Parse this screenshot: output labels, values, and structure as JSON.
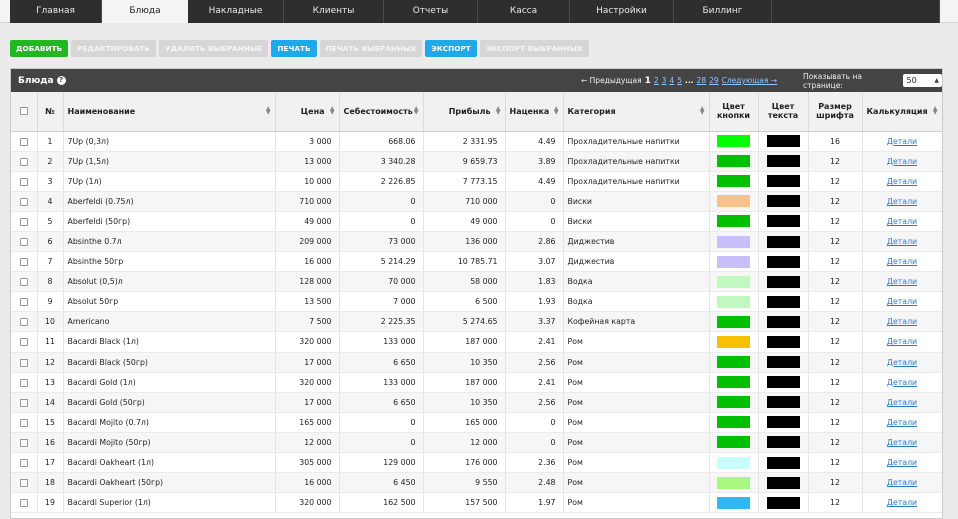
{
  "nav": {
    "tabs": [
      {
        "label": "Главная",
        "width": 92,
        "active": false
      },
      {
        "label": "Блюда",
        "width": 86,
        "active": true
      },
      {
        "label": "Накладные",
        "width": 96,
        "active": false
      },
      {
        "label": "Клиенты",
        "width": 100,
        "active": false
      },
      {
        "label": "Отчеты",
        "width": 94,
        "active": false
      },
      {
        "label": "Касса",
        "width": 92,
        "active": false
      },
      {
        "label": "Настройки",
        "width": 104,
        "active": false
      },
      {
        "label": "Биллинг",
        "width": 98,
        "active": false
      },
      {
        "label": "",
        "width": 168,
        "active": false
      }
    ]
  },
  "toolbar": {
    "add": "Добавить",
    "edit": "Редактировать",
    "delete_selected": "Удалить выбранные",
    "print": "Печать",
    "print_selected": "Печать выбранных",
    "export": "Экспорт",
    "export_selected": "Экспорт выбранных"
  },
  "panel": {
    "title": "Блюда",
    "pager": {
      "prev": "← Предыдущая",
      "current": "1",
      "pages": [
        "2",
        "3",
        "4",
        "5"
      ],
      "ellipsis": "...",
      "tail_pages": [
        "28",
        "29"
      ],
      "next": "Следующая →"
    },
    "per_page_label": "Показывать на странице:",
    "per_page_value": "50"
  },
  "table": {
    "headers": {
      "num": "№",
      "name": "Наименование",
      "price": "Цена",
      "cost": "Себестоимость",
      "profit": "Прибыль",
      "markup": "Наценка",
      "category": "Категория",
      "button_color": "Цвет кнопки",
      "text_color": "Цвет текста",
      "font_size": "Размер шрифта",
      "calc": "Калькуляция"
    },
    "link_label": "Детали",
    "rows": [
      {
        "n": "1",
        "name": "7Up (0,3л)",
        "price": "3 000",
        "cost": "668.06",
        "profit": "2 331.95",
        "markup": "4.49",
        "category": "Прохладительные напитки",
        "btn": "#00ff00",
        "txt": "#000000",
        "size": "16"
      },
      {
        "n": "2",
        "name": "7Up (1,5л)",
        "price": "13 000",
        "cost": "3 340.28",
        "profit": "9 659.73",
        "markup": "3.89",
        "category": "Прохладительные напитки",
        "btn": "#00c000",
        "txt": "#000000",
        "size": "12"
      },
      {
        "n": "3",
        "name": "7Up (1л)",
        "price": "10 000",
        "cost": "2 226.85",
        "profit": "7 773.15",
        "markup": "4.49",
        "category": "Прохладительные напитки",
        "btn": "#00c000",
        "txt": "#000000",
        "size": "12"
      },
      {
        "n": "4",
        "name": "Aberfeldi (0.75л)",
        "price": "710 000",
        "cost": "0",
        "profit": "710 000",
        "markup": "0",
        "category": "Виски",
        "btn": "#f8c08a",
        "txt": "#000000",
        "size": "12"
      },
      {
        "n": "5",
        "name": "Aberfeldi (50гр)",
        "price": "49 000",
        "cost": "0",
        "profit": "49 000",
        "markup": "0",
        "category": "Виски",
        "btn": "#00c000",
        "txt": "#000000",
        "size": "12"
      },
      {
        "n": "6",
        "name": "Absinthe 0.7л",
        "price": "209 000",
        "cost": "73 000",
        "profit": "136 000",
        "markup": "2.86",
        "category": "Диджестив",
        "btn": "#c8c0f8",
        "txt": "#000000",
        "size": "12"
      },
      {
        "n": "7",
        "name": "Absinthe 50гр",
        "price": "16 000",
        "cost": "5 214.29",
        "profit": "10 785.71",
        "markup": "3.07",
        "category": "Диджестив",
        "btn": "#c8c0f8",
        "txt": "#000000",
        "size": "12"
      },
      {
        "n": "8",
        "name": "Absolut (0,5)л",
        "price": "128 000",
        "cost": "70 000",
        "profit": "58 000",
        "markup": "1.83",
        "category": "Водка",
        "btn": "#c0f8c0",
        "txt": "#000000",
        "size": "12"
      },
      {
        "n": "9",
        "name": "Absolut 50гр",
        "price": "13 500",
        "cost": "7 000",
        "profit": "6 500",
        "markup": "1.93",
        "category": "Водка",
        "btn": "#c0f8c0",
        "txt": "#000000",
        "size": "12"
      },
      {
        "n": "10",
        "name": "Americano",
        "price": "7 500",
        "cost": "2 225.35",
        "profit": "5 274.65",
        "markup": "3.37",
        "category": "Кофейная карта",
        "btn": "#00c000",
        "txt": "#000000",
        "size": "12"
      },
      {
        "n": "11",
        "name": "Bacardi Black (1л)",
        "price": "320 000",
        "cost": "133 000",
        "profit": "187 000",
        "markup": "2.41",
        "category": "Ром",
        "btn": "#f8c000",
        "txt": "#000000",
        "size": "12"
      },
      {
        "n": "12",
        "name": "Bacardi Black (50гр)",
        "price": "17 000",
        "cost": "6 650",
        "profit": "10 350",
        "markup": "2.56",
        "category": "Ром",
        "btn": "#00c000",
        "txt": "#000000",
        "size": "12"
      },
      {
        "n": "13",
        "name": "Bacardi Gold (1л)",
        "price": "320 000",
        "cost": "133 000",
        "profit": "187 000",
        "markup": "2.41",
        "category": "Ром",
        "btn": "#00c000",
        "txt": "#000000",
        "size": "12"
      },
      {
        "n": "14",
        "name": "Bacardi Gold (50гр)",
        "price": "17 000",
        "cost": "6 650",
        "profit": "10 350",
        "markup": "2.56",
        "category": "Ром",
        "btn": "#00c000",
        "txt": "#000000",
        "size": "12"
      },
      {
        "n": "15",
        "name": "Bacardi Mojito (0.7л)",
        "price": "165 000",
        "cost": "0",
        "profit": "165 000",
        "markup": "0",
        "category": "Ром",
        "btn": "#00c000",
        "txt": "#000000",
        "size": "12"
      },
      {
        "n": "16",
        "name": "Bacardi Mojito (50гр)",
        "price": "12 000",
        "cost": "0",
        "profit": "12 000",
        "markup": "0",
        "category": "Ром",
        "btn": "#00c000",
        "txt": "#000000",
        "size": "12"
      },
      {
        "n": "17",
        "name": "Bacardi Oakheart (1л)",
        "price": "305 000",
        "cost": "129 000",
        "profit": "176 000",
        "markup": "2.36",
        "category": "Ром",
        "btn": "#c8fcff",
        "txt": "#000000",
        "size": "12"
      },
      {
        "n": "18",
        "name": "Bacardi Oakheart (50гр)",
        "price": "16 000",
        "cost": "6 450",
        "profit": "9 550",
        "markup": "2.48",
        "category": "Ром",
        "btn": "#a8f880",
        "txt": "#000000",
        "size": "12"
      },
      {
        "n": "19",
        "name": "Bacardi Superior (1л)",
        "price": "320 000",
        "cost": "162 500",
        "profit": "157 500",
        "markup": "1.97",
        "category": "Ром",
        "btn": "#30b8f0",
        "txt": "#000000",
        "size": "12"
      }
    ]
  }
}
